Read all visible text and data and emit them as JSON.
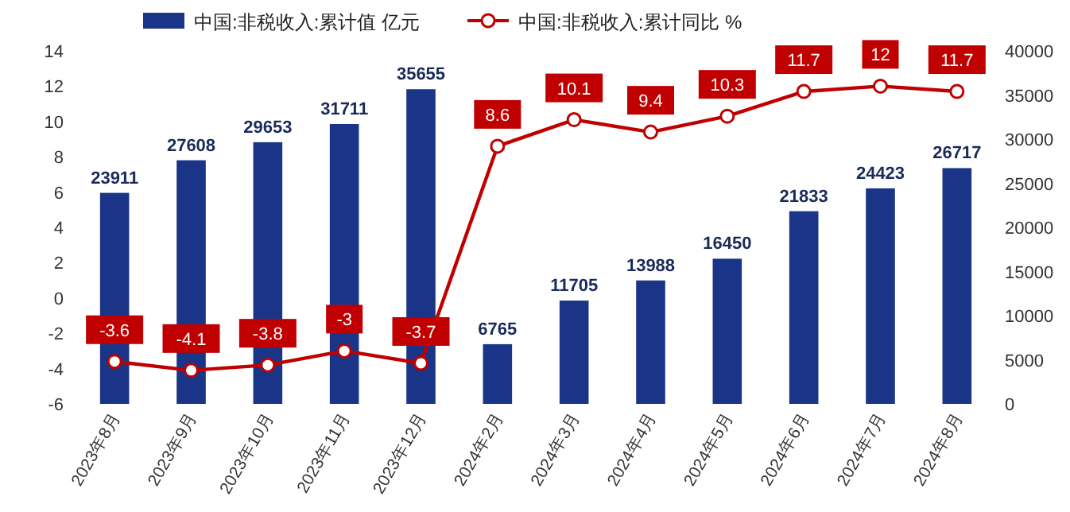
{
  "chart_data": {
    "type": "bar",
    "categories": [
      "2023年8月",
      "2023年9月",
      "2023年10月",
      "2023年11月",
      "2023年12月",
      "2024年2月",
      "2024年3月",
      "2024年4月",
      "2024年5月",
      "2024年6月",
      "2024年7月",
      "2024年8月"
    ],
    "series": [
      {
        "name": "中国:非税收入:累计值 亿元",
        "axis": "y2",
        "color": "#1a3587",
        "values": [
          23911,
          27608,
          29653,
          31711,
          35655,
          6765,
          11705,
          13988,
          16450,
          21833,
          24423,
          26717
        ]
      },
      {
        "name": "中国:非税收入:累计同比 %",
        "type": "line",
        "axis": "y",
        "color": "#c00000",
        "marker": "circle",
        "values": [
          -3.6,
          -4.1,
          -3.8,
          -3,
          -3.7,
          8.6,
          10.1,
          9.4,
          10.3,
          11.7,
          12,
          11.7
        ]
      }
    ],
    "ylim": [
      -6,
      14
    ],
    "yticks": [
      -6,
      -4,
      -2,
      0,
      2,
      4,
      6,
      8,
      10,
      12,
      14
    ],
    "y2lim": [
      0,
      40000
    ],
    "y2ticks": [
      0,
      5000,
      10000,
      15000,
      20000,
      25000,
      30000,
      35000,
      40000
    ],
    "legend": "top",
    "data_labels": true
  }
}
